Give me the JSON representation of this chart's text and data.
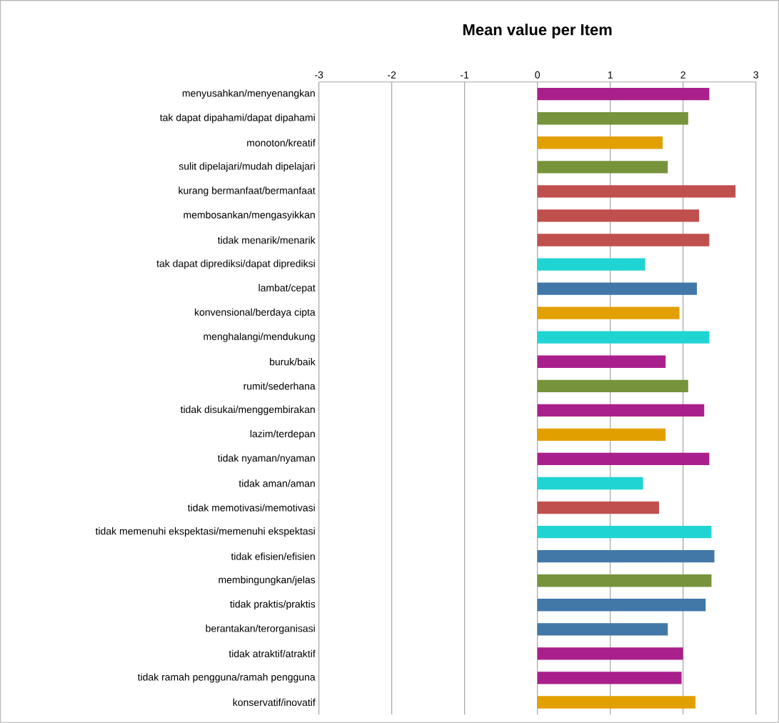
{
  "chart_data": {
    "type": "bar",
    "orientation": "horizontal",
    "title": "Mean value per Item",
    "categories": [
      "menyusahkan/menyenangkan",
      "tak dapat dipahami/dapat dipahami",
      "monoton/kreatif",
      "sulit dipelajari/mudah dipelajari",
      "kurang bermanfaat/bermanfaat",
      "membosankan/mengasyikkan",
      "tidak menarik/menarik",
      "tak dapat diprediksi/dapat diprediksi",
      "lambat/cepat",
      "konvensional/berdaya cipta",
      "menghalangi/mendukung",
      "buruk/baik",
      "rumit/sederhana",
      "tidak disukai/menggembirakan",
      "lazim/terdepan",
      "tidak nyaman/nyaman",
      "tidak aman/aman",
      "tidak memotivasi/memotivasi",
      "tidak memenuhi ekspektasi/memenuhi ekspektasi",
      "tidak efisien/efisien",
      "membingungkan/jelas",
      "tidak praktis/praktis",
      "berantakan/terorganisasi",
      "tidak atraktif/atraktif",
      "tidak ramah pengguna/ramah pengguna",
      "konservatif/inovatif"
    ],
    "values": [
      2.36,
      2.07,
      1.72,
      1.79,
      2.72,
      2.22,
      2.36,
      1.48,
      2.19,
      1.95,
      2.36,
      1.76,
      2.07,
      2.29,
      1.76,
      2.36,
      1.45,
      1.67,
      2.39,
      2.43,
      2.39,
      2.31,
      1.79,
      2.0,
      1.98,
      2.17
    ],
    "colors": [
      "#a9208c",
      "#77933c",
      "#e2a000",
      "#77933c",
      "#c0504d",
      "#c0504d",
      "#c0504d",
      "#21d4d4",
      "#4178a8",
      "#e2a000",
      "#21d4d4",
      "#a9208c",
      "#77933c",
      "#a9208c",
      "#e2a000",
      "#a9208c",
      "#21d4d4",
      "#c0504d",
      "#21d4d4",
      "#4178a8",
      "#77933c",
      "#4178a8",
      "#4178a8",
      "#a9208c",
      "#a9208c",
      "#e2a000"
    ],
    "xlim": [
      -3,
      3
    ],
    "xticks": [
      -3,
      -2,
      -1,
      0,
      1,
      2,
      3
    ],
    "grid": "x"
  }
}
